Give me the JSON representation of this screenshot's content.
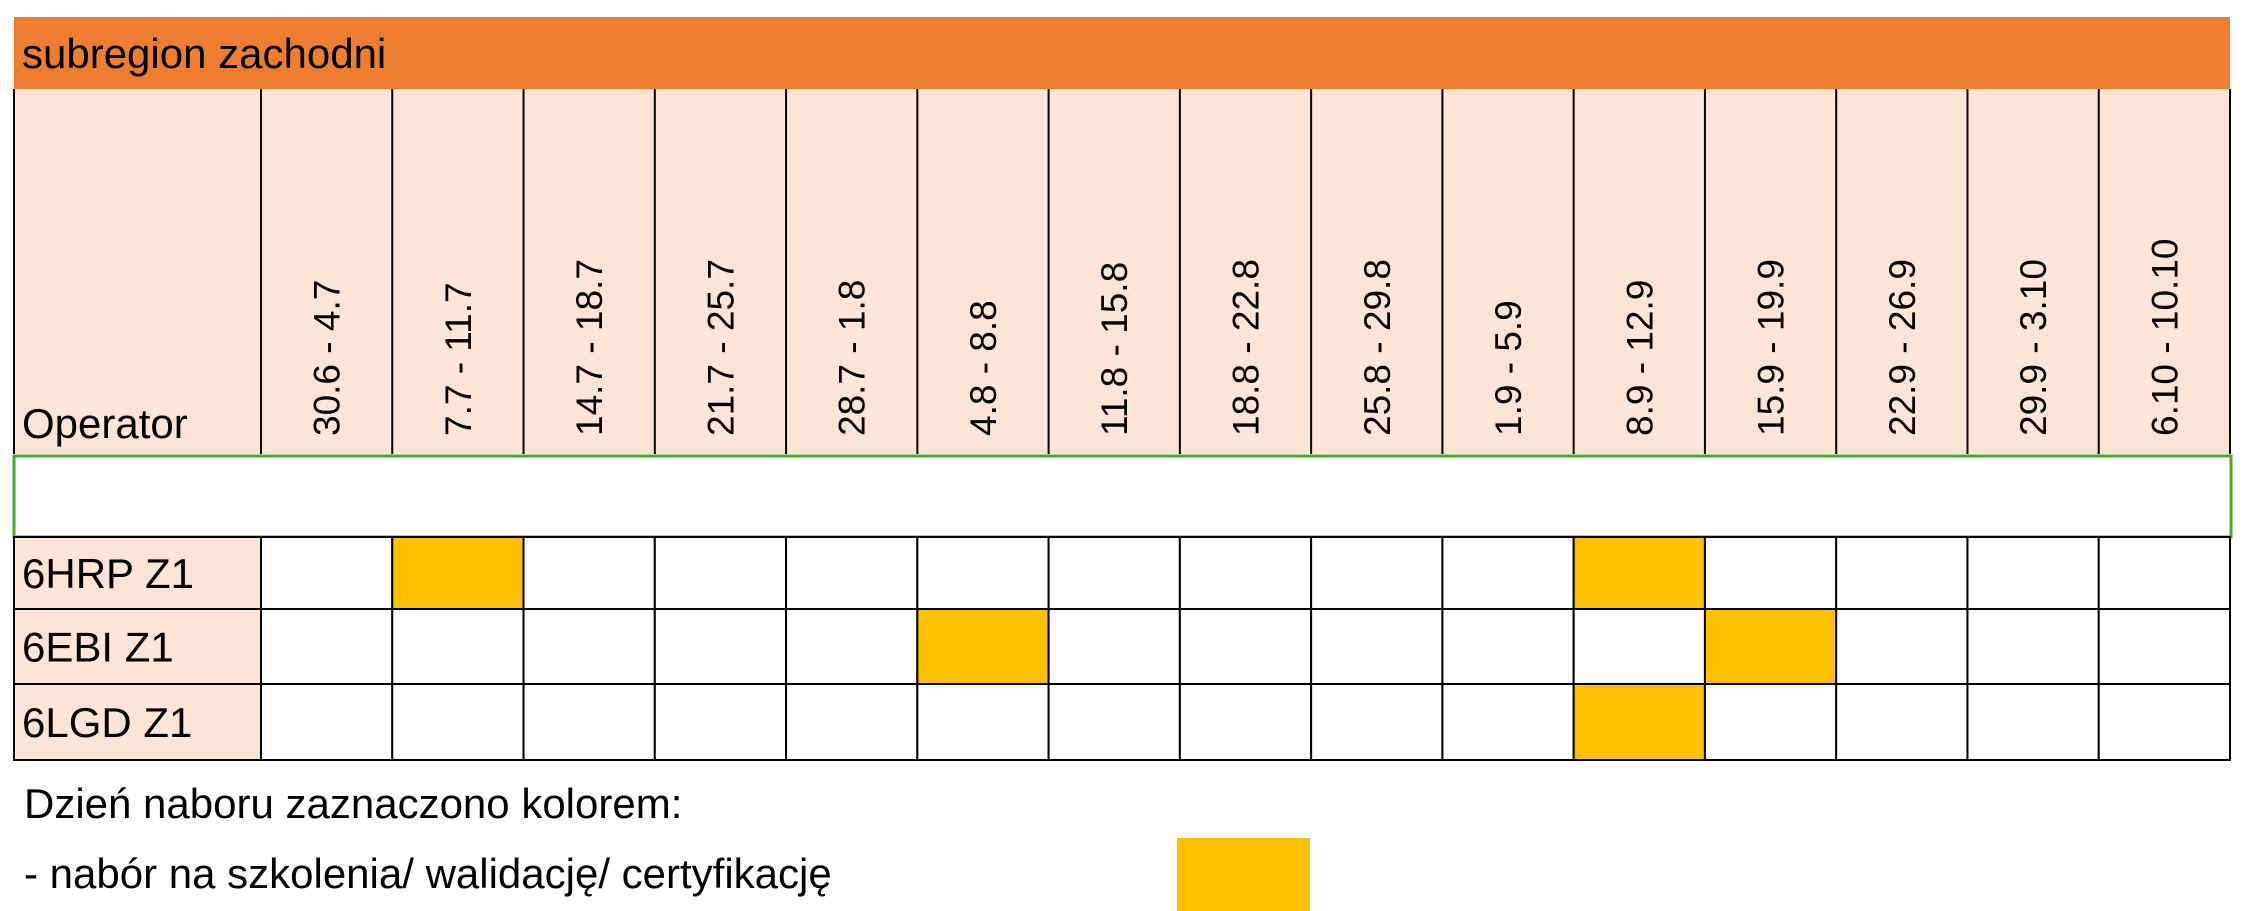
{
  "header": {
    "title": "subregion zachodni"
  },
  "table": {
    "corner": "Operator",
    "columns": [
      "30.6 - 4.7",
      "7.7 - 11.7",
      "14.7 - 18.7",
      "21.7 - 25.7",
      "28.7 - 1.8",
      "4.8 - 8.8",
      "11.8 - 15.8",
      "18.8 - 22.8",
      "25.8 - 29.8",
      "1.9 - 5.9",
      "8.9 - 12.9",
      "15.9 - 19.9",
      "22.9 - 26.9",
      "29.9 - 3.10",
      "6.10 - 10.10"
    ],
    "highlight_color": "#ffc000",
    "rows": [
      {
        "label": "6HRP Z1",
        "cells": [
          false,
          true,
          false,
          false,
          false,
          false,
          false,
          false,
          false,
          false,
          true,
          false,
          false,
          false,
          false
        ]
      },
      {
        "label": "6EBI Z1",
        "cells": [
          false,
          false,
          false,
          false,
          false,
          true,
          false,
          false,
          false,
          false,
          false,
          true,
          false,
          false,
          false
        ]
      },
      {
        "label": "6LGD Z1",
        "cells": [
          false,
          false,
          false,
          false,
          false,
          false,
          false,
          false,
          false,
          false,
          true,
          false,
          false,
          false,
          false
        ]
      }
    ]
  },
  "legend": {
    "title": "Dzień naboru zaznaczono kolorem:",
    "items": [
      {
        "label": "- nabór na szkolenia/ walidację/ certyfikację",
        "color": "#ffc000"
      }
    ]
  }
}
